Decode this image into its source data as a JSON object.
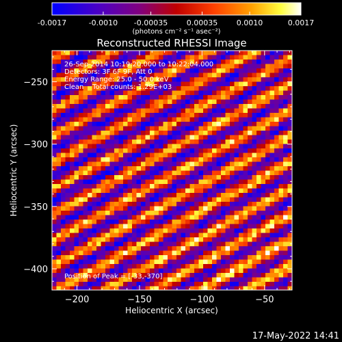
{
  "footer": {
    "timestamp": "17-May-2022 14:41"
  },
  "colorbar": {
    "tick_labels": [
      "-0.0017",
      "-0.0010",
      "-0.00035",
      "0.00035",
      "0.0010",
      "0.0017"
    ],
    "tick_values": [
      -0.0017,
      -0.001,
      -0.00035,
      0.00035,
      0.001,
      0.0017
    ],
    "range": [
      -0.0017,
      0.0017
    ],
    "units_label": "(photons cm⁻² s⁻¹ asec⁻²)",
    "colormap": "blue-purple-red-orange-yellow-white"
  },
  "chart_data": {
    "type": "heatmap",
    "title": "Reconstructed RHESSI Image",
    "xlabel": "Heliocentric X (arcsec)",
    "ylabel": "Heliocentric Y (arcsec)",
    "xlim": [
      -220,
      -28
    ],
    "ylim": [
      -417,
      -225
    ],
    "xticks": [
      -200,
      -150,
      -100,
      -50
    ],
    "xtick_labels": [
      "−200",
      "−150",
      "−100",
      "−50"
    ],
    "yticks": [
      -250,
      -300,
      -350,
      -400
    ],
    "ytick_labels": [
      "−250",
      "−300",
      "−350",
      "−400"
    ],
    "pattern": "diagonal stripes",
    "annotations": [
      "26-Sep-2014 10:19:20.000 to 10:22:04.000",
      "Detectors: 3F 6F 9F, Att 0",
      "Energy Range: 25.0 - 50.0 keV",
      "Clean    Total counts: 1.29E+03"
    ],
    "peak_label": "Position of Peak = [-33,-370]",
    "peak": [
      -33,
      -370
    ]
  }
}
